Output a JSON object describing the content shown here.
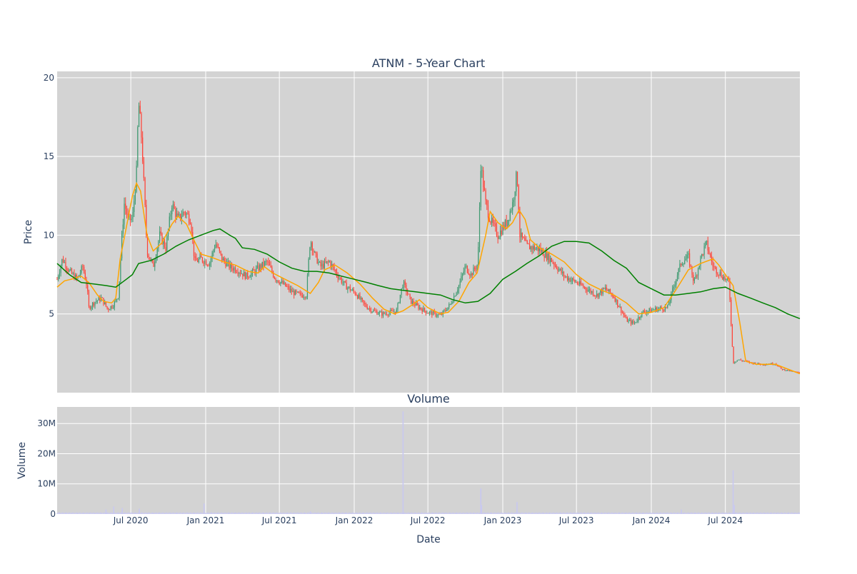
{
  "title": "ATNM - 5-Year Chart",
  "colors": {
    "plot_bg": "#d3d3d3",
    "grid": "#ffffff",
    "increasing": "#3d9970",
    "decreasing": "#ff4136",
    "ma_short": "#ffa500",
    "ma_long": "#008000",
    "volume_bar": "#c8c8f0",
    "text": "#2a3f5f"
  },
  "chart_data": [
    {
      "type": "candlestick",
      "title": "ATNM - 5-Year Chart",
      "ylabel": "Price",
      "ylim": [
        0,
        20.4
      ],
      "yticks": [
        5,
        10,
        15,
        20
      ],
      "x_start": "2020-01-02",
      "x_end": "2024-12-31",
      "grid": true,
      "legend": "none",
      "series": [
        {
          "type": "candlestick"
        },
        {
          "type": "line",
          "points": [
            [
              "2020-01-02",
              6.7
            ],
            [
              "2020-01-20",
              7.1
            ],
            [
              "2020-02-05",
              7.2
            ],
            [
              "2020-03-01",
              7.4
            ],
            [
              "2020-03-20",
              7.0
            ],
            [
              "2020-04-10",
              6.2
            ],
            [
              "2020-04-25",
              5.8
            ],
            [
              "2020-05-15",
              5.7
            ],
            [
              "2020-05-25",
              6.0
            ],
            [
              "2020-06-05",
              8.5
            ],
            [
              "2020-06-20",
              10.5
            ],
            [
              "2020-07-05",
              12.5
            ],
            [
              "2020-07-15",
              13.3
            ],
            [
              "2020-07-25",
              12.8
            ],
            [
              "2020-08-10",
              10.0
            ],
            [
              "2020-08-25",
              9.0
            ],
            [
              "2020-09-15",
              9.5
            ],
            [
              "2020-10-10",
              10.7
            ],
            [
              "2020-10-25",
              11.2
            ],
            [
              "2020-11-15",
              10.7
            ],
            [
              "2020-12-01",
              9.8
            ],
            [
              "2020-12-20",
              8.8
            ],
            [
              "2021-01-15",
              8.6
            ],
            [
              "2021-02-15",
              8.3
            ],
            [
              "2021-03-15",
              8.1
            ],
            [
              "2021-04-15",
              7.7
            ],
            [
              "2021-05-10",
              7.6
            ],
            [
              "2021-05-25",
              8.0
            ],
            [
              "2021-06-15",
              7.6
            ],
            [
              "2021-07-15",
              7.2
            ],
            [
              "2021-08-15",
              6.8
            ],
            [
              "2021-09-15",
              6.3
            ],
            [
              "2021-10-05",
              7.0
            ],
            [
              "2021-10-20",
              7.8
            ],
            [
              "2021-11-15",
              8.1
            ],
            [
              "2021-12-15",
              7.6
            ],
            [
              "2022-01-15",
              6.9
            ],
            [
              "2022-02-15",
              6.0
            ],
            [
              "2022-03-15",
              5.3
            ],
            [
              "2022-04-10",
              5.0
            ],
            [
              "2022-05-01",
              5.2
            ],
            [
              "2022-05-25",
              5.6
            ],
            [
              "2022-06-10",
              5.9
            ],
            [
              "2022-07-01",
              5.4
            ],
            [
              "2022-08-01",
              5.0
            ],
            [
              "2022-08-20",
              5.1
            ],
            [
              "2022-09-15",
              5.8
            ],
            [
              "2022-10-10",
              7.0
            ],
            [
              "2022-10-30",
              7.6
            ],
            [
              "2022-11-20",
              10.0
            ],
            [
              "2022-12-01",
              11.5
            ],
            [
              "2022-12-20",
              10.8
            ],
            [
              "2023-01-10",
              10.4
            ],
            [
              "2023-01-25",
              10.8
            ],
            [
              "2023-02-10",
              11.6
            ],
            [
              "2023-02-25",
              11.0
            ],
            [
              "2023-03-10",
              9.7
            ],
            [
              "2023-04-01",
              9.2
            ],
            [
              "2023-05-01",
              8.8
            ],
            [
              "2023-06-01",
              8.3
            ],
            [
              "2023-07-01",
              7.5
            ],
            [
              "2023-08-01",
              6.9
            ],
            [
              "2023-09-01",
              6.5
            ],
            [
              "2023-10-01",
              6.2
            ],
            [
              "2023-11-01",
              5.7
            ],
            [
              "2023-12-01",
              5.0
            ],
            [
              "2024-01-01",
              5.1
            ],
            [
              "2024-02-01",
              5.4
            ],
            [
              "2024-03-01",
              6.5
            ],
            [
              "2024-04-01",
              7.8
            ],
            [
              "2024-05-01",
              8.2
            ],
            [
              "2024-06-01",
              8.5
            ],
            [
              "2024-06-15",
              8.1
            ],
            [
              "2024-07-01",
              7.5
            ],
            [
              "2024-07-20",
              6.8
            ],
            [
              "2024-08-05",
              4.5
            ],
            [
              "2024-08-20",
              2.0
            ],
            [
              "2024-09-15",
              1.8
            ],
            [
              "2024-11-01",
              1.8
            ],
            [
              "2024-12-31",
              1.2
            ]
          ]
        },
        {
          "type": "line",
          "points": [
            [
              "2020-01-02",
              8.2
            ],
            [
              "2020-02-01",
              7.5
            ],
            [
              "2020-03-01",
              7.0
            ],
            [
              "2020-04-01",
              6.9
            ],
            [
              "2020-05-01",
              6.8
            ],
            [
              "2020-05-25",
              6.7
            ],
            [
              "2020-06-20",
              7.2
            ],
            [
              "2020-07-05",
              7.5
            ],
            [
              "2020-07-20",
              8.2
            ],
            [
              "2020-08-20",
              8.4
            ],
            [
              "2020-09-20",
              8.8
            ],
            [
              "2020-10-20",
              9.3
            ],
            [
              "2020-11-20",
              9.7
            ],
            [
              "2020-12-20",
              10.0
            ],
            [
              "2021-01-20",
              10.3
            ],
            [
              "2021-02-05",
              10.4
            ],
            [
              "2021-03-01",
              10.0
            ],
            [
              "2021-03-15",
              9.8
            ],
            [
              "2021-04-01",
              9.2
            ],
            [
              "2021-05-01",
              9.1
            ],
            [
              "2021-06-01",
              8.8
            ],
            [
              "2021-07-01",
              8.3
            ],
            [
              "2021-08-01",
              7.9
            ],
            [
              "2021-09-01",
              7.7
            ],
            [
              "2021-10-01",
              7.7
            ],
            [
              "2021-11-01",
              7.6
            ],
            [
              "2021-12-01",
              7.4
            ],
            [
              "2022-01-01",
              7.2
            ],
            [
              "2022-02-01",
              7.0
            ],
            [
              "2022-03-01",
              6.8
            ],
            [
              "2022-04-01",
              6.6
            ],
            [
              "2022-05-01",
              6.5
            ],
            [
              "2022-06-01",
              6.4
            ],
            [
              "2022-07-01",
              6.3
            ],
            [
              "2022-08-01",
              6.2
            ],
            [
              "2022-09-01",
              5.9
            ],
            [
              "2022-10-01",
              5.7
            ],
            [
              "2022-11-01",
              5.8
            ],
            [
              "2022-12-01",
              6.3
            ],
            [
              "2023-01-01",
              7.2
            ],
            [
              "2023-02-01",
              7.7
            ],
            [
              "2023-03-01",
              8.2
            ],
            [
              "2023-04-01",
              8.7
            ],
            [
              "2023-05-01",
              9.3
            ],
            [
              "2023-06-01",
              9.6
            ],
            [
              "2023-07-01",
              9.6
            ],
            [
              "2023-08-01",
              9.5
            ],
            [
              "2023-09-01",
              9.0
            ],
            [
              "2023-10-01",
              8.4
            ],
            [
              "2023-11-01",
              7.9
            ],
            [
              "2023-12-01",
              7.0
            ],
            [
              "2024-01-01",
              6.6
            ],
            [
              "2024-02-01",
              6.2
            ],
            [
              "2024-03-01",
              6.2
            ],
            [
              "2024-04-01",
              6.3
            ],
            [
              "2024-05-01",
              6.4
            ],
            [
              "2024-06-01",
              6.6
            ],
            [
              "2024-07-01",
              6.7
            ],
            [
              "2024-08-01",
              6.3
            ],
            [
              "2024-09-01",
              6.0
            ],
            [
              "2024-10-01",
              5.7
            ],
            [
              "2024-11-01",
              5.4
            ],
            [
              "2024-12-01",
              5.0
            ],
            [
              "2024-12-31",
              4.7
            ]
          ]
        }
      ],
      "candle_anchors": [
        [
          "2020-01-02",
          7.2
        ],
        [
          "2020-01-15",
          8.5
        ],
        [
          "2020-02-01",
          7.7
        ],
        [
          "2020-02-20",
          7.2
        ],
        [
          "2020-03-05",
          8.0
        ],
        [
          "2020-03-15",
          6.8
        ],
        [
          "2020-03-20",
          5.4
        ],
        [
          "2020-04-05",
          5.8
        ],
        [
          "2020-04-20",
          6.0
        ],
        [
          "2020-05-05",
          5.3
        ],
        [
          "2020-05-20",
          5.6
        ],
        [
          "2020-06-01",
          6.2
        ],
        [
          "2020-06-08",
          9.5
        ],
        [
          "2020-06-15",
          12.0
        ],
        [
          "2020-06-25",
          11.0
        ],
        [
          "2020-07-05",
          11.0
        ],
        [
          "2020-07-15",
          14.0
        ],
        [
          "2020-07-20",
          18.5
        ],
        [
          "2020-07-28",
          16.0
        ],
        [
          "2020-08-10",
          9.0
        ],
        [
          "2020-08-25",
          8.0
        ],
        [
          "2020-09-10",
          10.0
        ],
        [
          "2020-09-25",
          9.2
        ],
        [
          "2020-10-10",
          12.0
        ],
        [
          "2020-10-25",
          11.0
        ],
        [
          "2020-11-10",
          11.5
        ],
        [
          "2020-11-25",
          11.0
        ],
        [
          "2020-12-05",
          8.3
        ],
        [
          "2020-12-20",
          8.5
        ],
        [
          "2021-01-10",
          8.2
        ],
        [
          "2021-01-25",
          9.5
        ],
        [
          "2021-02-10",
          8.5
        ],
        [
          "2021-03-01",
          8.0
        ],
        [
          "2021-03-20",
          7.8
        ],
        [
          "2021-04-10",
          7.4
        ],
        [
          "2021-04-25",
          7.6
        ],
        [
          "2021-05-15",
          8.0
        ],
        [
          "2021-06-01",
          8.3
        ],
        [
          "2021-06-20",
          7.3
        ],
        [
          "2021-07-10",
          6.9
        ],
        [
          "2021-08-01",
          6.4
        ],
        [
          "2021-08-20",
          6.2
        ],
        [
          "2021-09-05",
          6.2
        ],
        [
          "2021-09-15",
          9.8
        ],
        [
          "2021-09-25",
          8.8
        ],
        [
          "2021-10-10",
          8.0
        ],
        [
          "2021-11-01",
          8.3
        ],
        [
          "2021-11-20",
          7.5
        ],
        [
          "2021-12-10",
          6.8
        ],
        [
          "2022-01-05",
          6.3
        ],
        [
          "2022-01-25",
          5.6
        ],
        [
          "2022-02-15",
          5.2
        ],
        [
          "2022-03-10",
          5.0
        ],
        [
          "2022-04-01",
          5.1
        ],
        [
          "2022-04-15",
          5.2
        ],
        [
          "2022-05-01",
          7.0
        ],
        [
          "2022-05-20",
          5.8
        ],
        [
          "2022-06-10",
          5.4
        ],
        [
          "2022-07-01",
          5.1
        ],
        [
          "2022-08-01",
          4.9
        ],
        [
          "2022-08-25",
          5.6
        ],
        [
          "2022-09-15",
          6.8
        ],
        [
          "2022-10-01",
          8.0
        ],
        [
          "2022-10-15",
          7.5
        ],
        [
          "2022-11-01",
          8.2
        ],
        [
          "2022-11-08",
          14.5
        ],
        [
          "2022-11-20",
          12.0
        ],
        [
          "2022-12-01",
          11.0
        ],
        [
          "2022-12-20",
          10.0
        ],
        [
          "2023-01-10",
          10.8
        ],
        [
          "2023-01-25",
          12.0
        ],
        [
          "2023-02-05",
          14.0
        ],
        [
          "2023-02-12",
          10.0
        ],
        [
          "2023-03-01",
          9.3
        ],
        [
          "2023-04-01",
          9.1
        ],
        [
          "2023-05-01",
          8.4
        ],
        [
          "2023-06-01",
          7.4
        ],
        [
          "2023-07-01",
          7.0
        ],
        [
          "2023-08-01",
          6.5
        ],
        [
          "2023-08-20",
          6.2
        ],
        [
          "2023-09-10",
          6.6
        ],
        [
          "2023-10-01",
          6.1
        ],
        [
          "2023-11-01",
          4.6
        ],
        [
          "2023-11-20",
          4.4
        ],
        [
          "2023-12-10",
          5.1
        ],
        [
          "2024-01-10",
          5.3
        ],
        [
          "2024-02-10",
          5.4
        ],
        [
          "2024-03-01",
          7.2
        ],
        [
          "2024-03-15",
          8.3
        ],
        [
          "2024-04-01",
          8.6
        ],
        [
          "2024-04-15",
          7.0
        ],
        [
          "2024-05-01",
          8.5
        ],
        [
          "2024-05-15",
          9.5
        ],
        [
          "2024-06-01",
          8.0
        ],
        [
          "2024-06-20",
          7.5
        ],
        [
          "2024-07-01",
          7.2
        ],
        [
          "2024-07-10",
          7.0
        ],
        [
          "2024-07-20",
          1.9
        ],
        [
          "2024-08-01",
          2.1
        ],
        [
          "2024-09-01",
          1.9
        ],
        [
          "2024-10-01",
          1.8
        ],
        [
          "2024-11-01",
          1.85
        ],
        [
          "2024-11-15",
          1.5
        ],
        [
          "2024-12-31",
          1.25
        ]
      ]
    },
    {
      "type": "bar",
      "title": "Volume",
      "xlabel": "Date",
      "ylabel": "Volume",
      "ylim": [
        0,
        35500000
      ],
      "ytick_values": [
        0,
        10000000,
        20000000,
        30000000
      ],
      "ytick_labels": [
        "0",
        "10M",
        "20M",
        "30M"
      ],
      "x_ticks": [
        "2020-07-01",
        "2021-01-01",
        "2021-07-01",
        "2022-01-01",
        "2022-07-01",
        "2023-01-01",
        "2023-07-01",
        "2024-01-01",
        "2024-07-01"
      ],
      "x_tick_labels": [
        "Jul 2020",
        "Jan 2021",
        "Jul 2021",
        "Jan 2022",
        "Jul 2022",
        "Jan 2023",
        "Jul 2023",
        "Jan 2024",
        "Jul 2024"
      ],
      "baseline_volume": 400000,
      "spikes": [
        [
          "2020-05-01",
          1500000
        ],
        [
          "2020-05-20",
          2500000
        ],
        [
          "2020-06-10",
          2000000
        ],
        [
          "2020-07-22",
          1800000
        ],
        [
          "2020-12-28",
          3500000
        ],
        [
          "2021-09-15",
          900000
        ],
        [
          "2022-05-01",
          34000000
        ],
        [
          "2022-11-08",
          8500000
        ],
        [
          "2022-11-10",
          3000000
        ],
        [
          "2023-02-05",
          4000000
        ],
        [
          "2024-03-15",
          1500000
        ],
        [
          "2024-07-20",
          14500000
        ],
        [
          "2024-07-23",
          3000000
        ]
      ]
    }
  ]
}
